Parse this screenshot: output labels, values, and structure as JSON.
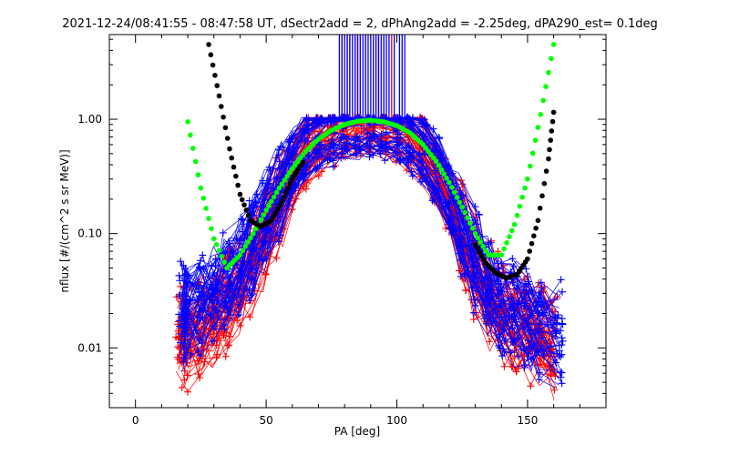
{
  "chart_data": {
    "type": "scatter",
    "title": "2021-12-24/08:41:55 - 08:47:58 UT, dSectr2add = 2, dPhAng2add = -2.25deg, dPA290_est=   0.1deg",
    "xlabel": "PA [deg]",
    "ylabel": "nflux [#/(cm^2 s sr MeV)]",
    "xlim": [
      -10,
      180
    ],
    "ylim": [
      0.003,
      5.5
    ],
    "yscale": "log",
    "x_ticks": [
      0,
      50,
      100,
      150
    ],
    "x_tick_labels": [
      "0",
      "50",
      "100",
      "150"
    ],
    "y_ticks": [
      0.01,
      0.1,
      1.0
    ],
    "y_tick_labels": [
      "0.01",
      "0.10",
      "1.00"
    ],
    "grid": false,
    "legend": "none",
    "colors": {
      "red": "#ff0000",
      "blue": "#0000ff",
      "green": "#00ff00",
      "black": "#000000"
    },
    "series": [
      {
        "color": "#ff0000",
        "style": "lines+plus",
        "profile": {
          "pa": [
            17,
            20,
            25,
            30,
            35,
            40,
            45,
            50,
            55,
            60,
            65,
            70,
            75,
            80,
            85,
            90,
            95,
            100,
            105,
            110,
            115,
            120,
            125,
            130,
            135,
            140,
            145,
            150,
            155,
            160
          ],
          "flux": [
            0.012,
            0.013,
            0.015,
            0.018,
            0.024,
            0.034,
            0.055,
            0.1,
            0.19,
            0.33,
            0.5,
            0.66,
            0.78,
            0.87,
            0.92,
            0.94,
            0.92,
            0.85,
            0.72,
            0.54,
            0.35,
            0.19,
            0.095,
            0.05,
            0.03,
            0.021,
            0.016,
            0.014,
            0.012,
            0.011
          ]
        },
        "vertical_marks_pa": [
          79,
          81,
          82,
          84,
          85,
          86,
          88,
          92,
          93,
          95,
          98
        ]
      },
      {
        "color": "#0000ff",
        "style": "lines+plus",
        "profile": {
          "pa": [
            18,
            20,
            25,
            30,
            35,
            40,
            45,
            50,
            55,
            60,
            65,
            70,
            75,
            80,
            85,
            90,
            95,
            100,
            105,
            110,
            115,
            120,
            125,
            130,
            135,
            140,
            145,
            150,
            155,
            162
          ],
          "flux": [
            0.02,
            0.022,
            0.025,
            0.03,
            0.038,
            0.052,
            0.08,
            0.14,
            0.25,
            0.4,
            0.57,
            0.72,
            0.83,
            0.91,
            0.95,
            0.96,
            0.93,
            0.86,
            0.74,
            0.57,
            0.38,
            0.22,
            0.11,
            0.06,
            0.036,
            0.025,
            0.02,
            0.017,
            0.015,
            0.014
          ]
        },
        "vertical_marks_pa": [
          78,
          79,
          80,
          81,
          82,
          83,
          84,
          85,
          86,
          87,
          88,
          89,
          90,
          91,
          92,
          93,
          94,
          95,
          96,
          97,
          99,
          101,
          102,
          103
        ]
      },
      {
        "color": "#00ff00",
        "style": "thick-dots",
        "x": [
          20,
          25,
          30,
          35,
          40,
          45,
          50,
          55,
          60,
          65,
          70,
          75,
          80,
          85,
          90,
          95,
          100,
          105,
          110,
          115,
          120,
          125,
          130,
          135,
          140,
          145,
          150,
          155,
          160
        ],
        "y": [
          0.95,
          0.25,
          0.09,
          0.05,
          0.065,
          0.1,
          0.16,
          0.25,
          0.37,
          0.52,
          0.67,
          0.8,
          0.9,
          0.96,
          0.98,
          0.95,
          0.88,
          0.76,
          0.6,
          0.43,
          0.28,
          0.17,
          0.1,
          0.065,
          0.065,
          0.12,
          0.3,
          1.1,
          4.5
        ]
      },
      {
        "color": "#000000",
        "style": "thick-dots",
        "x": [
          28,
          32,
          36,
          40,
          44,
          48,
          52,
          56,
          60,
          64,
          130,
          134,
          138,
          142,
          146,
          150,
          154,
          158,
          160
        ],
        "y": [
          4.5,
          1.6,
          0.55,
          0.22,
          0.13,
          0.115,
          0.13,
          0.19,
          0.3,
          0.42,
          0.08,
          0.055,
          0.045,
          0.041,
          0.044,
          0.06,
          0.13,
          0.45,
          1.15
        ]
      }
    ]
  }
}
